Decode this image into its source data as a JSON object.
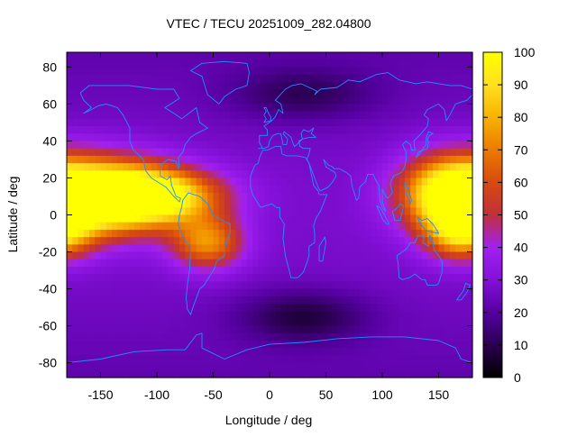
{
  "chart_data": {
    "type": "heatmap",
    "title": "VTEC / TECU 20251009_282.04800",
    "xlabel": "Longitude / deg",
    "ylabel": "Latitude / deg",
    "xlim": [
      -180,
      180
    ],
    "ylim": [
      -88,
      88
    ],
    "x_ticks": [
      -150,
      -100,
      -50,
      0,
      50,
      100,
      150
    ],
    "y_ticks": [
      80,
      60,
      40,
      20,
      0,
      -20,
      -40,
      -60,
      -80
    ],
    "colorbar": {
      "range": [
        0,
        100
      ],
      "ticks": [
        0,
        10,
        20,
        30,
        40,
        50,
        60,
        70,
        80,
        90,
        100
      ],
      "palette": [
        "#000000",
        "#2a0050",
        "#5500a0",
        "#8410d8",
        "#a020f0",
        "#c0303a",
        "#d84a10",
        "#ec7a00",
        "#f8b200",
        "#ffe020",
        "#ffff00"
      ]
    },
    "grid": false,
    "overlay": "world coastlines",
    "coastline_color": "#1f8fff",
    "field_anomalies": [
      {
        "lon": -150,
        "lat": 10,
        "peak": 80,
        "sx": 45,
        "sy": 14
      },
      {
        "lon": -100,
        "lat": 10,
        "peak": 60,
        "sx": 40,
        "sy": 10
      },
      {
        "lon": -55,
        "lat": -15,
        "peak": 45,
        "sx": 22,
        "sy": 10
      },
      {
        "lon": 160,
        "lat": 12,
        "peak": 58,
        "sx": 30,
        "sy": 14
      },
      {
        "lon": 170,
        "lat": -10,
        "peak": 48,
        "sx": 22,
        "sy": 10
      },
      {
        "lon": 30,
        "lat": -55,
        "peak": -18,
        "sx": 40,
        "sy": 10
      },
      {
        "lon": 30,
        "lat": 65,
        "peak": -14,
        "sx": 45,
        "sy": 10
      }
    ]
  }
}
